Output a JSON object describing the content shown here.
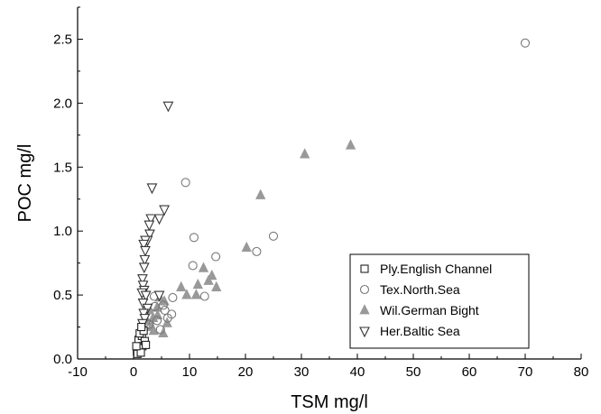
{
  "chart_data": {
    "type": "scatter",
    "title": "",
    "xlabel": "TSM mg/l",
    "ylabel": "POC mg/l",
    "xlim": [
      -10,
      80
    ],
    "ylim": [
      0,
      2.75
    ],
    "xticks": [
      "-10",
      "0",
      "10",
      "20",
      "30",
      "40",
      "50",
      "60",
      "70",
      "80"
    ],
    "yticks": [
      "0.0",
      "0.5",
      "1.0",
      "1.5",
      "2.0",
      "2.5"
    ],
    "grid": false,
    "legend_position": "bottom-right",
    "series": [
      {
        "name": "Ply.English Channel",
        "marker": "open-square",
        "points": [
          [
            0.6,
            0.06
          ],
          [
            0.8,
            0.09
          ],
          [
            1.0,
            0.12
          ],
          [
            1.2,
            0.08
          ],
          [
            0.9,
            0.15
          ],
          [
            1.5,
            0.18
          ],
          [
            1.1,
            0.2
          ],
          [
            1.6,
            0.1
          ],
          [
            0.7,
            0.04
          ],
          [
            1.3,
            0.05
          ],
          [
            2.0,
            0.14
          ],
          [
            1.8,
            0.22
          ],
          [
            2.2,
            0.11
          ],
          [
            1.4,
            0.25
          ],
          [
            0.5,
            0.1
          ]
        ]
      },
      {
        "name": "Tex.North.Sea",
        "marker": "open-circle",
        "points": [
          [
            70,
            2.47
          ],
          [
            9.3,
            1.38
          ],
          [
            10.8,
            0.95
          ],
          [
            25,
            0.96
          ],
          [
            14.7,
            0.8
          ],
          [
            22,
            0.84
          ],
          [
            10.6,
            0.73
          ],
          [
            12.7,
            0.49
          ],
          [
            3.7,
            0.49
          ],
          [
            7,
            0.48
          ],
          [
            5.3,
            0.42
          ],
          [
            6.1,
            0.32
          ],
          [
            6.8,
            0.35
          ],
          [
            4.2,
            0.3
          ],
          [
            4.8,
            0.23
          ],
          [
            3.8,
            0.41
          ],
          [
            5.6,
            0.38
          ],
          [
            2.8,
            0.27
          ],
          [
            2.2,
            0.29
          ]
        ]
      },
      {
        "name": "Wil.German Bight",
        "marker": "filled-triangle-up",
        "points": [
          [
            38.8,
            1.67
          ],
          [
            30.6,
            1.6
          ],
          [
            22.7,
            1.28
          ],
          [
            20.2,
            0.87
          ],
          [
            12.5,
            0.71
          ],
          [
            14,
            0.65
          ],
          [
            13.4,
            0.61
          ],
          [
            14.8,
            0.56
          ],
          [
            11.5,
            0.58
          ],
          [
            8.5,
            0.56
          ],
          [
            9.5,
            0.5
          ],
          [
            11.2,
            0.5
          ],
          [
            4.7,
            0.48
          ],
          [
            5.5,
            0.45
          ],
          [
            3.5,
            0.32
          ],
          [
            4.3,
            0.34
          ],
          [
            2.8,
            0.38
          ],
          [
            3.2,
            0.25
          ],
          [
            4.2,
            0.4
          ],
          [
            5.3,
            0.2
          ],
          [
            2.2,
            0.3
          ],
          [
            3.6,
            0.22
          ],
          [
            6,
            0.28
          ]
        ]
      },
      {
        "name": "Her.Baltic Sea",
        "marker": "open-triangle-down",
        "points": [
          [
            6.2,
            1.98
          ],
          [
            3.3,
            1.34
          ],
          [
            5.5,
            1.17
          ],
          [
            4.6,
            1.1
          ],
          [
            3.1,
            1.1
          ],
          [
            2.8,
            1.05
          ],
          [
            2.9,
            0.98
          ],
          [
            2.5,
            0.93
          ],
          [
            2.1,
            0.93
          ],
          [
            1.8,
            0.9
          ],
          [
            2.1,
            0.85
          ],
          [
            2.0,
            0.78
          ],
          [
            1.9,
            0.72
          ],
          [
            1.6,
            0.63
          ],
          [
            1.7,
            0.58
          ],
          [
            1.9,
            0.54
          ],
          [
            1.5,
            0.52
          ],
          [
            2.2,
            0.5
          ],
          [
            1.7,
            0.44
          ],
          [
            2.5,
            0.4
          ],
          [
            1.8,
            0.36
          ],
          [
            2.0,
            0.32
          ],
          [
            1.6,
            0.28
          ],
          [
            4.6,
            0.5
          ]
        ]
      }
    ]
  }
}
